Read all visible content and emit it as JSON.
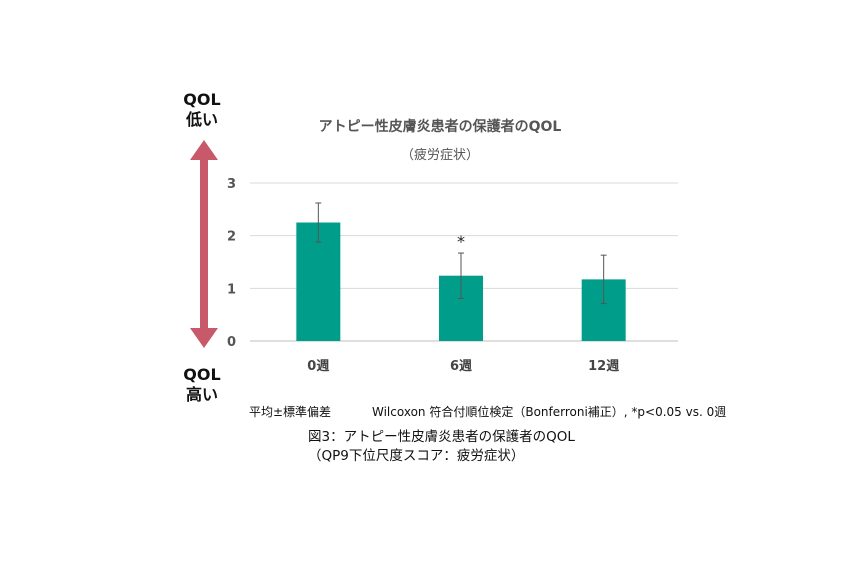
{
  "labels": {
    "qol_low": "QOL",
    "qol_low_sub": "低い",
    "qol_high": "QOL",
    "qol_high_sub": "高い",
    "footnote_stat": "平均±標準偏差",
    "footnote_test": "Wilcoxon 符合付順位検定（Bonferroni補正）, *p<0.05 vs. 0週",
    "caption_line1": "図3：アトピー性皮膚炎患者の保護者のQOL",
    "caption_line2": "（QP9下位尺度スコア：疲労症状）"
  },
  "colors": {
    "bar": "#009e8a",
    "arrow": "#c8596a",
    "grid": "#d9d9d9",
    "error": "#555555"
  },
  "chart_data": {
    "type": "bar",
    "title": "アトピー性皮膚炎患者の保護者のQOL",
    "subtitle": "（疲労症状）",
    "categories": [
      "0週",
      "6週",
      "12週"
    ],
    "values": [
      2.25,
      1.24,
      1.17
    ],
    "error": [
      0.37,
      0.43,
      0.46
    ],
    "significance": [
      "",
      "*",
      ""
    ],
    "ylim": [
      0,
      3
    ],
    "yticks": [
      "0",
      "1",
      "2",
      "3"
    ],
    "grid": true
  }
}
